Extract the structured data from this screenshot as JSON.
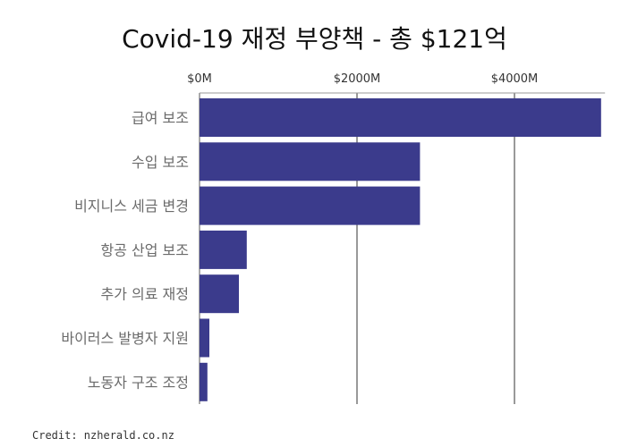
{
  "title": "Covid-19 재정 부양책 - 총 $121억",
  "credit": "Credit: nzherald.co.nz",
  "colors": {
    "bar": "#3b3b8c",
    "gridline": "#333333",
    "axis": "#555555"
  },
  "chart_data": {
    "type": "bar",
    "orientation": "horizontal",
    "title": "Covid-19 재정 부양책 - 총 $121억",
    "xlabel": "",
    "ylabel": "",
    "units": "$M",
    "categories": [
      "급여 보조",
      "수입 보조",
      "비지니스 세금 변경",
      "항공 산업 보조",
      "추가 의료 재정",
      "바이러스 발병자 지원",
      "노동자 구조 조정"
    ],
    "values": [
      5100,
      2800,
      2800,
      600,
      500,
      125,
      100
    ],
    "xlim": [
      0,
      5150
    ],
    "xticks": [
      0,
      2000,
      4000
    ],
    "xtick_labels": [
      "$0M",
      "$2000M",
      "$4000M"
    ],
    "grid": true,
    "legend": "none"
  }
}
